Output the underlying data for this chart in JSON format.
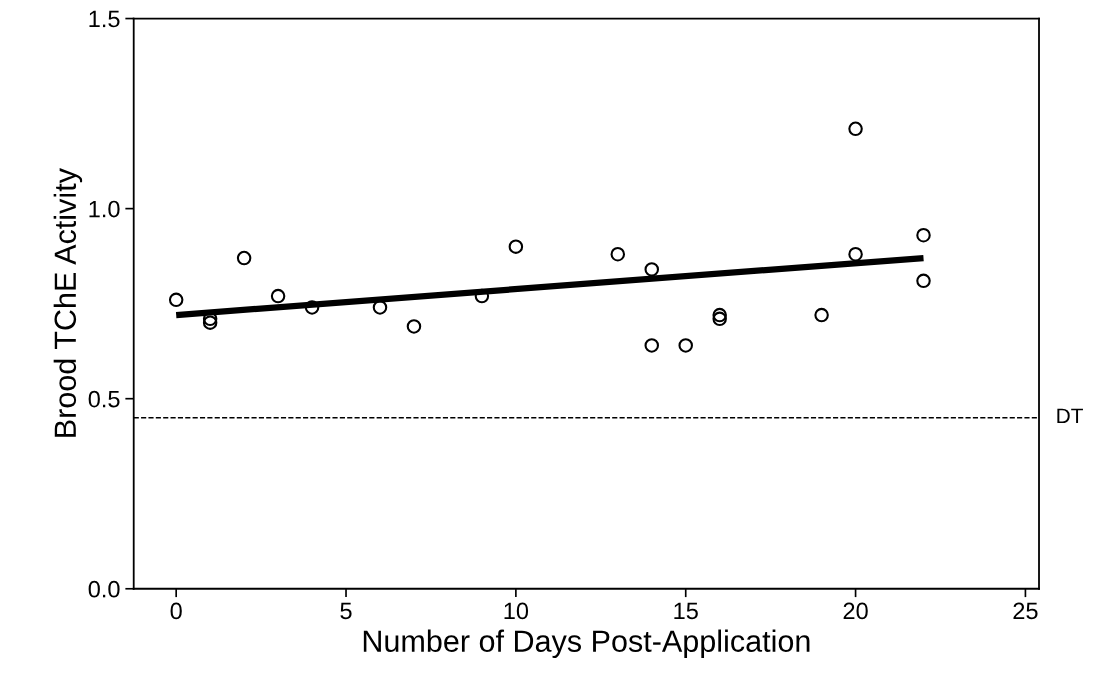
{
  "chart_data": {
    "type": "scatter",
    "xlabel": "Number of Days Post-Application",
    "ylabel": "Brood TChE Activity",
    "xlim": [
      -1.25,
      25.4
    ],
    "xticks": [
      0,
      5,
      10,
      15,
      20,
      25
    ],
    "ylim": [
      0,
      1.5
    ],
    "yticks": [
      {
        "value": 0,
        "label": "0.0"
      },
      {
        "value": 0.5,
        "label": "0.5"
      },
      {
        "value": 1.0,
        "label": "1.0"
      },
      {
        "value": 1.5,
        "label": "1.5"
      }
    ],
    "grid": false,
    "legend": false,
    "marker": "circle",
    "series": [
      {
        "color": "#000000",
        "x": [
          0,
          1,
          1,
          2,
          3,
          4,
          6,
          7,
          9,
          10,
          13,
          14,
          14,
          15,
          16,
          16,
          19,
          20,
          20,
          22,
          22
        ],
        "values": [
          0.76,
          0.71,
          0.7,
          0.87,
          0.77,
          0.74,
          0.74,
          0.69,
          0.77,
          0.9,
          0.88,
          0.84,
          0.64,
          0.64,
          0.72,
          0.71,
          0.72,
          1.21,
          0.88,
          0.93,
          0.81
        ]
      },
      {
        "type": "line",
        "color": "#000000",
        "marker": "none",
        "x": [
          0,
          22
        ],
        "values": [
          0.72,
          0.87
        ]
      }
    ],
    "ref_lines": [
      {
        "axis": "y",
        "value": 0.45,
        "label": "DT",
        "color": "#000000",
        "line_style": "dashed"
      }
    ]
  }
}
